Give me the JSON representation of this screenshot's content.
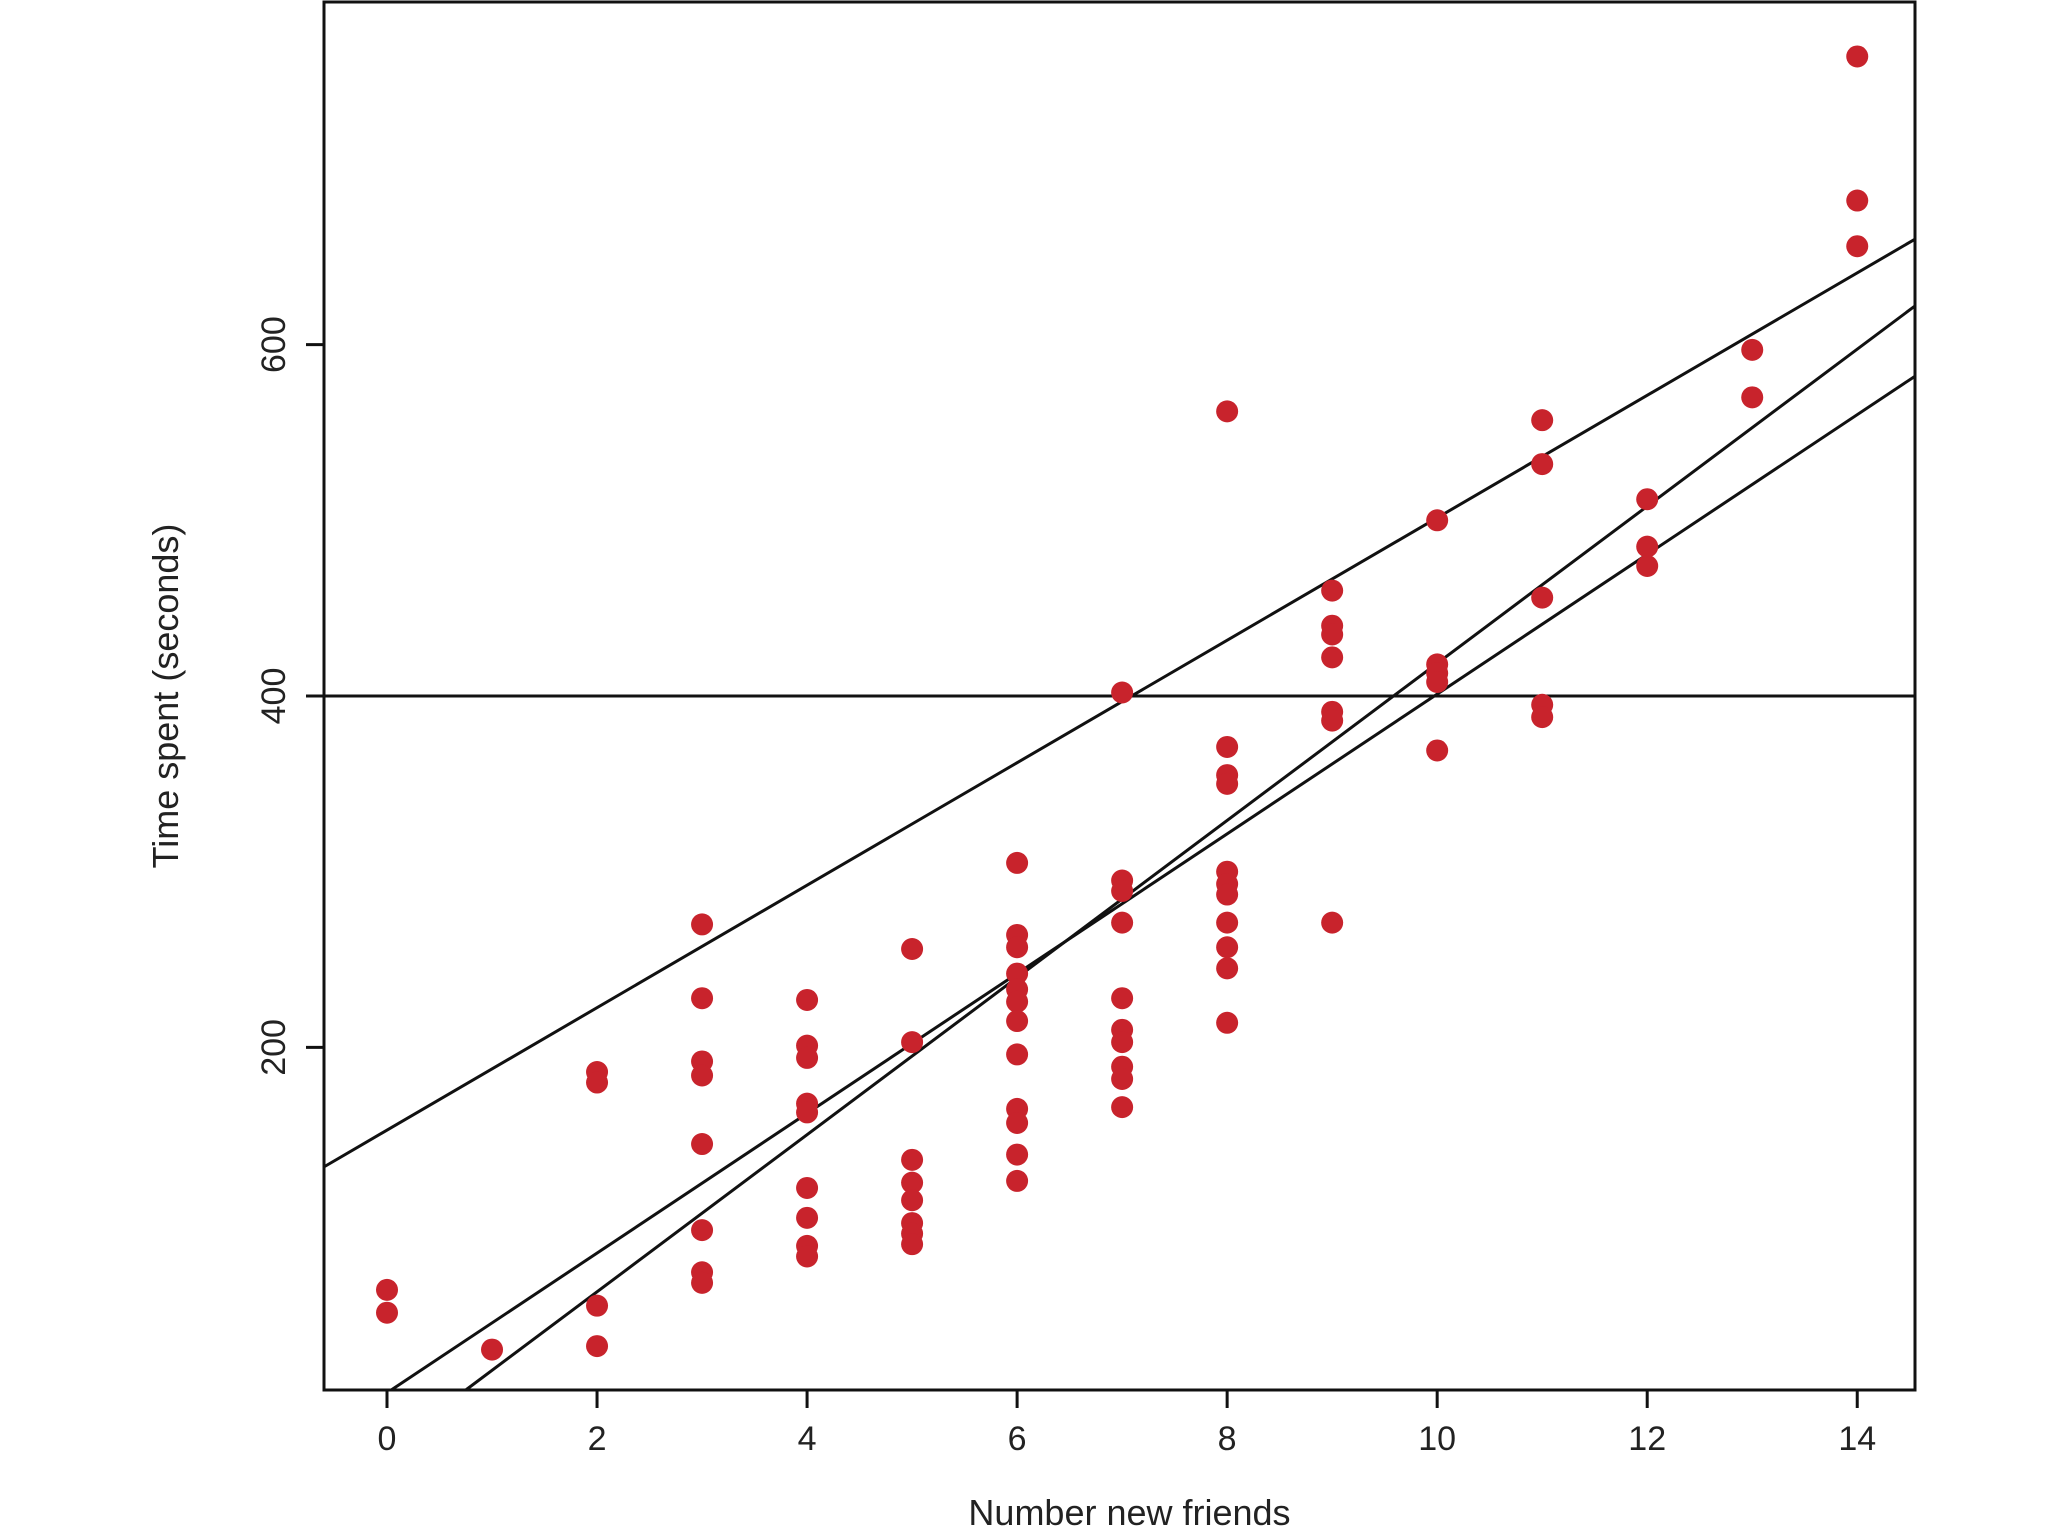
{
  "chart_data": {
    "type": "scatter",
    "title": "",
    "xlabel": "Number new friends",
    "ylabel": "Time spent (seconds)",
    "xlim": [
      -0.6,
      14.55
    ],
    "ylim": [
      5,
      795
    ],
    "x_ticks": [
      0,
      2,
      4,
      6,
      8,
      10,
      12,
      14
    ],
    "y_ticks": [
      200,
      400,
      600
    ],
    "grid": false,
    "legend": "none",
    "colors": {
      "points": "#c8232c",
      "lines": "#111111",
      "frame": "#111111",
      "background": "#ffffff"
    },
    "points": [
      {
        "x": 0,
        "y": 62
      },
      {
        "x": 0,
        "y": 49
      },
      {
        "x": 1,
        "y": 28
      },
      {
        "x": 2,
        "y": 186
      },
      {
        "x": 2,
        "y": 180
      },
      {
        "x": 2,
        "y": 53
      },
      {
        "x": 2,
        "y": 30
      },
      {
        "x": 3,
        "y": 270
      },
      {
        "x": 3,
        "y": 228
      },
      {
        "x": 3,
        "y": 192
      },
      {
        "x": 3,
        "y": 184
      },
      {
        "x": 3,
        "y": 145
      },
      {
        "x": 3,
        "y": 96
      },
      {
        "x": 3,
        "y": 72
      },
      {
        "x": 3,
        "y": 66
      },
      {
        "x": 4,
        "y": 227
      },
      {
        "x": 4,
        "y": 201
      },
      {
        "x": 4,
        "y": 194
      },
      {
        "x": 4,
        "y": 168
      },
      {
        "x": 4,
        "y": 163
      },
      {
        "x": 4,
        "y": 120
      },
      {
        "x": 4,
        "y": 103
      },
      {
        "x": 4,
        "y": 87
      },
      {
        "x": 4,
        "y": 81
      },
      {
        "x": 5,
        "y": 256
      },
      {
        "x": 5,
        "y": 203
      },
      {
        "x": 5,
        "y": 136
      },
      {
        "x": 5,
        "y": 123
      },
      {
        "x": 5,
        "y": 113
      },
      {
        "x": 5,
        "y": 100
      },
      {
        "x": 5,
        "y": 94
      },
      {
        "x": 5,
        "y": 88
      },
      {
        "x": 6,
        "y": 305
      },
      {
        "x": 6,
        "y": 264
      },
      {
        "x": 6,
        "y": 257
      },
      {
        "x": 6,
        "y": 242
      },
      {
        "x": 6,
        "y": 233
      },
      {
        "x": 6,
        "y": 226
      },
      {
        "x": 6,
        "y": 215
      },
      {
        "x": 6,
        "y": 196
      },
      {
        "x": 6,
        "y": 165
      },
      {
        "x": 6,
        "y": 157
      },
      {
        "x": 6,
        "y": 139
      },
      {
        "x": 6,
        "y": 124
      },
      {
        "x": 7,
        "y": 402
      },
      {
        "x": 7,
        "y": 295
      },
      {
        "x": 7,
        "y": 289
      },
      {
        "x": 7,
        "y": 271
      },
      {
        "x": 7,
        "y": 228
      },
      {
        "x": 7,
        "y": 210
      },
      {
        "x": 7,
        "y": 203
      },
      {
        "x": 7,
        "y": 189
      },
      {
        "x": 7,
        "y": 182
      },
      {
        "x": 7,
        "y": 166
      },
      {
        "x": 8,
        "y": 562
      },
      {
        "x": 8,
        "y": 371
      },
      {
        "x": 8,
        "y": 355
      },
      {
        "x": 8,
        "y": 350
      },
      {
        "x": 8,
        "y": 300
      },
      {
        "x": 8,
        "y": 293
      },
      {
        "x": 8,
        "y": 287
      },
      {
        "x": 8,
        "y": 271
      },
      {
        "x": 8,
        "y": 257
      },
      {
        "x": 8,
        "y": 245
      },
      {
        "x": 8,
        "y": 214
      },
      {
        "x": 9,
        "y": 460
      },
      {
        "x": 9,
        "y": 440
      },
      {
        "x": 9,
        "y": 435
      },
      {
        "x": 9,
        "y": 422
      },
      {
        "x": 9,
        "y": 391
      },
      {
        "x": 9,
        "y": 386
      },
      {
        "x": 9,
        "y": 271
      },
      {
        "x": 10,
        "y": 500
      },
      {
        "x": 10,
        "y": 418
      },
      {
        "x": 10,
        "y": 413
      },
      {
        "x": 10,
        "y": 408
      },
      {
        "x": 10,
        "y": 369
      },
      {
        "x": 11,
        "y": 557
      },
      {
        "x": 11,
        "y": 532
      },
      {
        "x": 11,
        "y": 456
      },
      {
        "x": 11,
        "y": 395
      },
      {
        "x": 11,
        "y": 388
      },
      {
        "x": 12,
        "y": 512
      },
      {
        "x": 12,
        "y": 485
      },
      {
        "x": 12,
        "y": 474
      },
      {
        "x": 13,
        "y": 597
      },
      {
        "x": 13,
        "y": 570
      },
      {
        "x": 14,
        "y": 764
      },
      {
        "x": 14,
        "y": 682
      },
      {
        "x": 14,
        "y": 656
      }
    ],
    "lines": [
      {
        "x1": -0.6,
        "y1": 400,
        "x2": 14.55,
        "y2": 400
      },
      {
        "x1": -0.6,
        "y1": 132,
        "x2": 14.55,
        "y2": 660
      },
      {
        "x1": 0.04,
        "y1": 5,
        "x2": 14.55,
        "y2": 582
      },
      {
        "x1": 0.75,
        "y1": 5,
        "x2": 14.55,
        "y2": 622
      }
    ]
  }
}
